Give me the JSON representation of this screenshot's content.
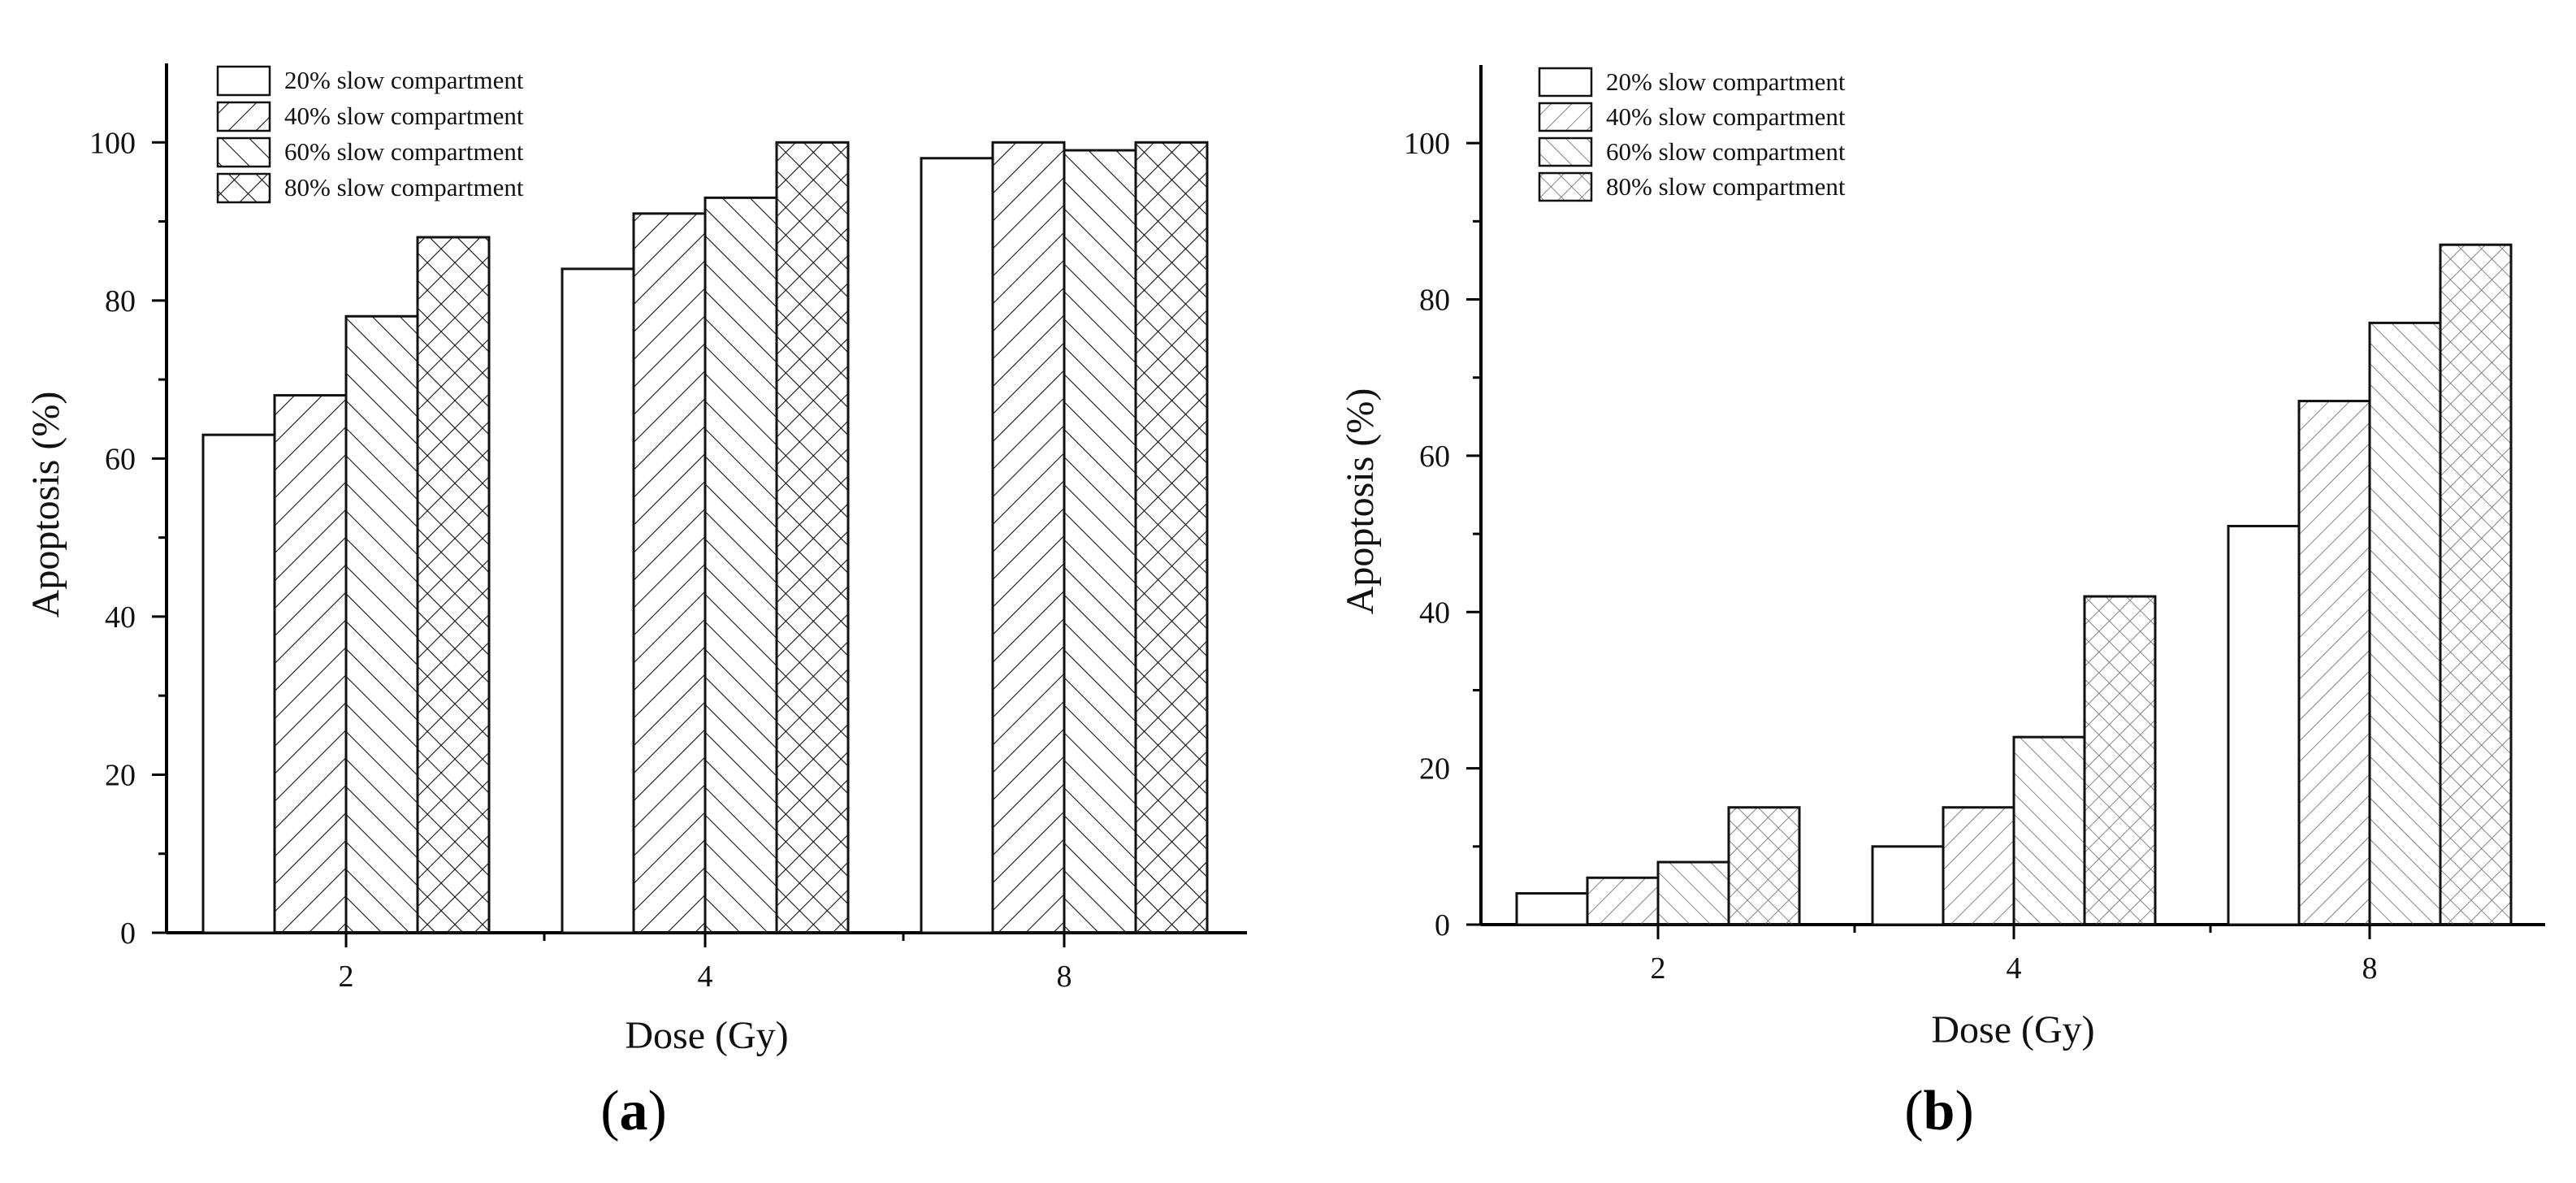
{
  "figure": {
    "panels": [
      {
        "label": "a"
      },
      {
        "label": "b"
      }
    ]
  },
  "chart_data": [
    {
      "type": "bar",
      "panel": "a",
      "xlabel": "Dose (Gy)",
      "ylabel": "Apoptosis (%)",
      "categories": [
        "2",
        "4",
        "8"
      ],
      "ylim": [
        0,
        110
      ],
      "yticks": [
        0,
        20,
        40,
        60,
        80,
        100
      ],
      "grid": false,
      "legend_position": "top-left",
      "series": [
        {
          "name": "20% slow compartment",
          "pattern": "none",
          "values": [
            63,
            84,
            98
          ]
        },
        {
          "name": "40% slow compartment",
          "pattern": "forward-diagonal",
          "values": [
            68,
            91,
            100
          ]
        },
        {
          "name": "60% slow compartment",
          "pattern": "back-diagonal",
          "values": [
            78,
            93,
            99
          ]
        },
        {
          "name": "80% slow compartment",
          "pattern": "crosshatch",
          "values": [
            88,
            100,
            100
          ]
        }
      ]
    },
    {
      "type": "bar",
      "panel": "b",
      "xlabel": "Dose (Gy)",
      "ylabel": "Apoptosis (%)",
      "categories": [
        "2",
        "4",
        "8"
      ],
      "ylim": [
        0,
        110
      ],
      "yticks": [
        0,
        20,
        40,
        60,
        80,
        100
      ],
      "grid": false,
      "legend_position": "top-left",
      "series": [
        {
          "name": "20% slow compartment",
          "pattern": "none",
          "values": [
            4,
            10,
            51
          ]
        },
        {
          "name": "40% slow compartment",
          "pattern": "forward-diagonal",
          "values": [
            6,
            15,
            67
          ]
        },
        {
          "name": "60% slow compartment",
          "pattern": "back-diagonal",
          "values": [
            8,
            24,
            77
          ]
        },
        {
          "name": "80% slow compartment",
          "pattern": "crosshatch",
          "values": [
            15,
            42,
            87
          ]
        }
      ]
    }
  ]
}
